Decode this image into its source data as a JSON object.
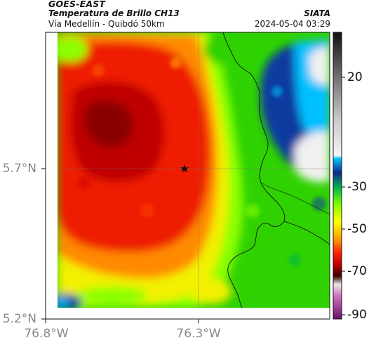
{
  "header": {
    "satellite": "GOES-EAST",
    "product": "Temperatura de Brillo CH13",
    "area": "Vía Medellín - Quibdó 50km",
    "brand": "SIATA",
    "timestamp": "2024-05-04 03:29"
  },
  "map": {
    "lat_ticks": [
      "5.7°N",
      "5.2°N"
    ],
    "lon_ticks": [
      "76.8°W",
      "76.3°W"
    ],
    "marker": "star-icon"
  },
  "colorbar": {
    "ticks": [
      "20",
      "-30",
      "-50",
      "-70",
      "-90"
    ],
    "stops": [
      {
        "value": 30,
        "color": "#1a1a1a"
      },
      {
        "value": 10,
        "color": "#bdbdbd"
      },
      {
        "value": -22,
        "color": "#f2f2f2"
      },
      {
        "value": -24,
        "color": "#00c8ff"
      },
      {
        "value": -28,
        "color": "#0a2c8c"
      },
      {
        "value": -34,
        "color": "#00c060"
      },
      {
        "value": -40,
        "color": "#7dff00"
      },
      {
        "value": -47,
        "color": "#ffff00"
      },
      {
        "value": -55,
        "color": "#ffa000"
      },
      {
        "value": -60,
        "color": "#ff2000"
      },
      {
        "value": -65,
        "color": "#d00000"
      },
      {
        "value": -70,
        "color": "#5a0000"
      },
      {
        "value": -77,
        "color": "#ffffff"
      },
      {
        "value": -83,
        "color": "#d070c0"
      },
      {
        "value": -92,
        "color": "#7a1a7a"
      }
    ]
  },
  "colors": {
    "coldest_core": "#8a0000",
    "red": "#e81a00",
    "orange": "#ff7a00",
    "yellow": "#f2f000",
    "green": "#2fd200",
    "lime": "#8cff00",
    "blue": "#0a3aa0",
    "cyan": "#00c0ff",
    "white": "#f0f0f0"
  }
}
